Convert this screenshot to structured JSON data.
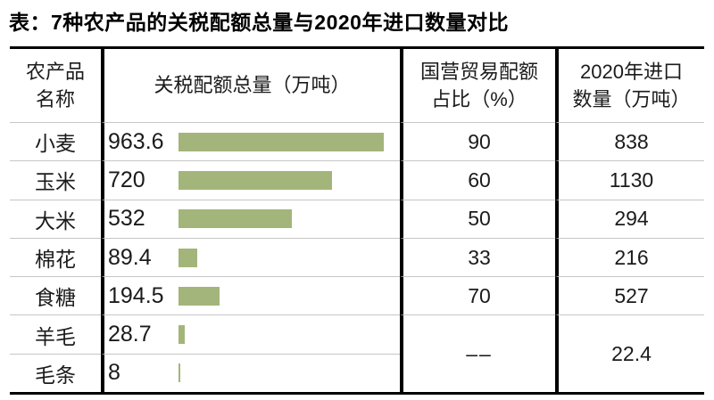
{
  "title": "表：7种农产品的关税配额总量与2020年进口数量对比",
  "table": {
    "headers": {
      "product": "农产品\n名称",
      "quota": "关税配额总量（万吨）",
      "state_share": "国营贸易配额\n占比（%）",
      "import2020": "2020年进口\n数量（万吨）"
    },
    "rows": [
      {
        "name": "小麦",
        "quota_label": "963.6",
        "quota_value": 963.6,
        "state_pct": "90",
        "import_qty": "838"
      },
      {
        "name": "玉米",
        "quota_label": "720",
        "quota_value": 720,
        "state_pct": "60",
        "import_qty": "1130"
      },
      {
        "name": "大米",
        "quota_label": "532",
        "quota_value": 532,
        "state_pct": "50",
        "import_qty": "294"
      },
      {
        "name": "棉花",
        "quota_label": "89.4",
        "quota_value": 89.4,
        "state_pct": "33",
        "import_qty": "216"
      },
      {
        "name": "食糖",
        "quota_label": "194.5",
        "quota_value": 194.5,
        "state_pct": "70",
        "import_qty": "527"
      },
      {
        "name": "羊毛",
        "quota_label": "28.7",
        "quota_value": 28.7
      },
      {
        "name": "毛条",
        "quota_label": "8",
        "quota_value": 8
      }
    ],
    "merged_wool_rows": {
      "state_share": "––",
      "import2020": "22.4"
    }
  },
  "colors": {
    "bar_green": "#a3b57b",
    "row_divider": "#c6c6c6",
    "border_black": "#000000",
    "text": "#1b1b1b"
  },
  "chart_data": {
    "type": "bar",
    "orientation": "horizontal",
    "title": "表：7种农产品的关税配额总量与2020年进口数量对比",
    "categories": [
      "小麦",
      "玉米",
      "大米",
      "棉花",
      "食糖",
      "羊毛",
      "毛条"
    ],
    "series": [
      {
        "name": "关税配额总量（万吨）",
        "values": [
          963.6,
          720,
          532,
          89.4,
          194.5,
          28.7,
          8
        ]
      },
      {
        "name": "国营贸易配额占比（%）",
        "values": [
          90,
          60,
          50,
          33,
          70,
          null,
          null
        ]
      },
      {
        "name": "2020年进口数量（万吨）",
        "values": [
          838,
          1130,
          294,
          216,
          527,
          22.4,
          null
        ]
      }
    ],
    "xlim": [
      0,
      963.6
    ],
    "bar_color": "#a3b57b",
    "grid": false,
    "legend_position": "none",
    "notes": "羊毛 and 毛条 rows share merged cells in last two columns: 国营贸易配额占比 = –– (none), 2020年进口数量 = 22.4"
  }
}
